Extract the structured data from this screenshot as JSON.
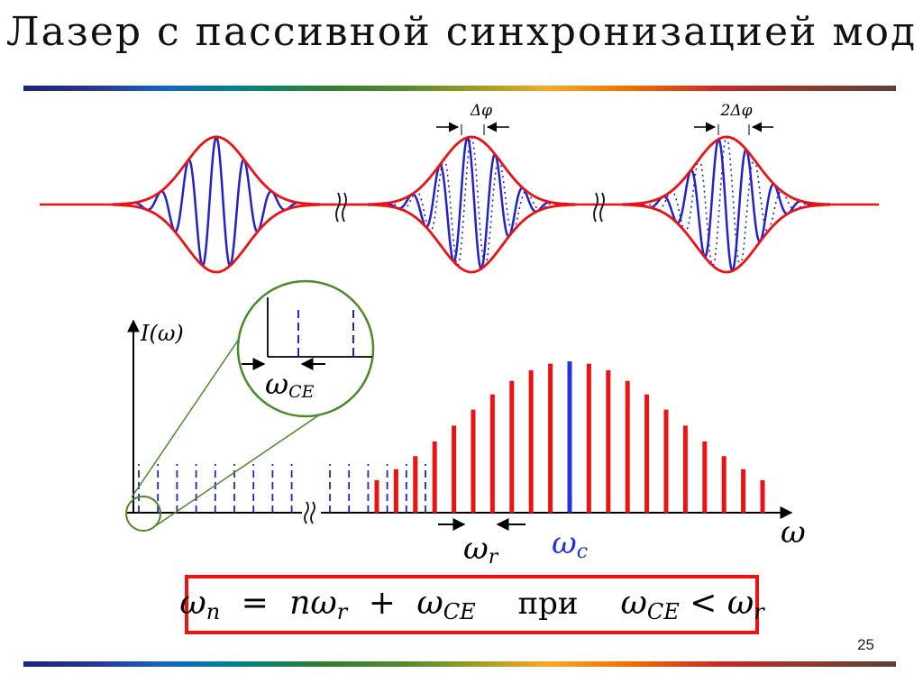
{
  "title": "Лазер с пассивной синхронизацией мод",
  "page_number": "25",
  "labels": {
    "delta_phi": "Δφ",
    "two_delta_phi": "2Δφ",
    "intensity_axis": "I(ω)",
    "omega_axis": "ω",
    "omega": "ω",
    "r_sub": "r",
    "c_sub": "c",
    "ce_sub": "CE"
  },
  "formula": {
    "omega": "ω",
    "n_sub": "n",
    "equals": "=",
    "n": "n",
    "r_sub": "r",
    "plus": "+",
    "ce_sub": "CE",
    "word": "при",
    "less": "<"
  },
  "colors": {
    "envelope": "#ee1111",
    "carrier": "#2222cc",
    "comb_line": "#ee1111",
    "central_line": "#2233dd",
    "zoom_circle": "#4a8a2a",
    "formula_border": "#ee1111"
  },
  "icons": [
    "axis-break-icon",
    "arrow-right-icon",
    "arrow-left-icon"
  ]
}
